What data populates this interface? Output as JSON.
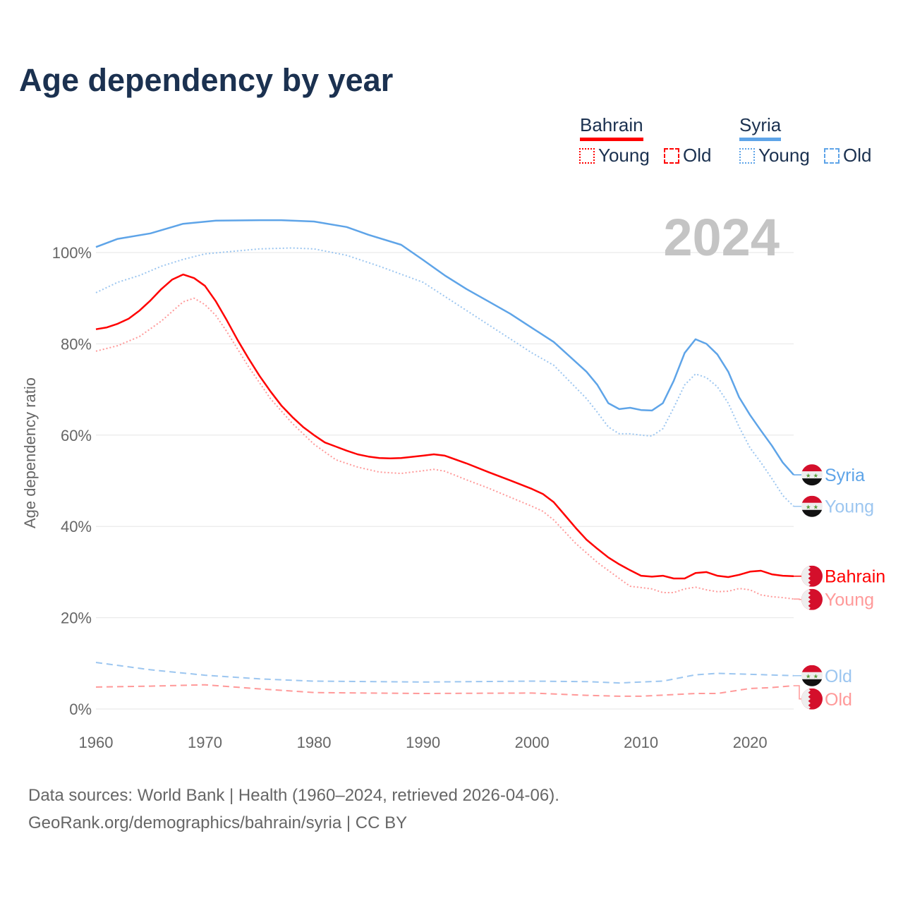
{
  "title": "Age dependency by year",
  "legend": {
    "countries": [
      {
        "name": "Bahrain",
        "color": "#ff0000",
        "young": "Young",
        "old": "Old"
      },
      {
        "name": "Syria",
        "color": "#5ea4e8",
        "young": "Young",
        "old": "Old"
      }
    ]
  },
  "footer": {
    "line1": "Data sources: World Bank | Health (1960–2024, retrieved 2026-04-06).",
    "line2": "GeoRank.org/demographics/bahrain/syria | CC BY"
  },
  "chart_data": {
    "type": "line",
    "title": "Age dependency by year",
    "year_label": "2024",
    "xlabel": "",
    "ylabel": "Age dependency ratio",
    "xlim": [
      1960,
      2024
    ],
    "ylim": [
      0,
      110
    ],
    "x_ticks": [
      "1960",
      "1970",
      "1980",
      "1990",
      "2000",
      "2010",
      "2020"
    ],
    "y_ticks": [
      "0%",
      "20%",
      "40%",
      "60%",
      "80%",
      "100%"
    ],
    "grid": true,
    "series": [
      {
        "name": "Syria",
        "label": "Syria",
        "country": "Syria",
        "style": "solid",
        "color": "#5ea4e8",
        "x": [
          1960,
          1962,
          1965,
          1968,
          1971,
          1975,
          1977,
          1980,
          1983,
          1985,
          1988,
          1990,
          1992,
          1994,
          1996,
          1998,
          2000,
          2002,
          2005,
          2006,
          2007,
          2008,
          2009,
          2010,
          2011,
          2012,
          2013,
          2014,
          2015,
          2016,
          2017,
          2018,
          2019,
          2020,
          2021,
          2022,
          2023,
          2024
        ],
        "y": [
          101.2,
          103,
          104.2,
          106.3,
          107,
          107.1,
          107.1,
          106.8,
          105.6,
          103.9,
          101.7,
          98.4,
          95,
          92,
          89.3,
          86.6,
          83.5,
          80.4,
          73.9,
          71,
          67,
          65.7,
          66,
          65.5,
          65.4,
          67,
          71.9,
          78,
          81,
          80,
          77.7,
          73.9,
          68.3,
          64.4,
          61,
          57.7,
          54,
          51.3
        ]
      },
      {
        "name": "Syria Young",
        "label": "Young",
        "country": "Syria",
        "style": "dotted",
        "color": "#9cc6f0",
        "x": [
          1960,
          1962,
          1964,
          1966,
          1968,
          1970,
          1975,
          1978,
          1980,
          1983,
          1986,
          1990,
          1994,
          1998,
          2000,
          2002,
          2005,
          2006,
          2007,
          2008,
          2009,
          2010,
          2011,
          2012,
          2013,
          2014,
          2015,
          2016,
          2017,
          2018,
          2019,
          2020,
          2021,
          2022,
          2023,
          2024
        ],
        "y": [
          91.2,
          93.5,
          95,
          97,
          98.5,
          99.7,
          100.8,
          101,
          100.8,
          99.4,
          97,
          93.5,
          87.3,
          81.1,
          78,
          75.3,
          68,
          65,
          61.8,
          60.3,
          60.3,
          60,
          59.8,
          61.4,
          66,
          71,
          73.4,
          72.6,
          70.6,
          67,
          61.8,
          57.2,
          54,
          50.5,
          46.8,
          44.4
        ]
      },
      {
        "name": "Syria Old",
        "label": "Old",
        "country": "Syria",
        "style": "dashed",
        "color": "#9cc6f0",
        "x": [
          1960,
          1965,
          1970,
          1975,
          1980,
          1990,
          2000,
          2005,
          2008,
          2012,
          2015,
          2017,
          2020,
          2024
        ],
        "y": [
          10.2,
          8.6,
          7.4,
          6.6,
          6.1,
          5.9,
          6.1,
          6.0,
          5.7,
          6.1,
          7.5,
          7.8,
          7.6,
          7.3
        ]
      },
      {
        "name": "Bahrain",
        "label": "Bahrain",
        "country": "Bahrain",
        "style": "solid",
        "color": "#ff0000",
        "x": [
          1960,
          1961,
          1962,
          1963,
          1964,
          1965,
          1966,
          1967,
          1968,
          1969,
          1970,
          1971,
          1972,
          1973,
          1974,
          1975,
          1976,
          1977,
          1978,
          1979,
          1980,
          1981,
          1982,
          1983,
          1984,
          1985,
          1986,
          1987,
          1988,
          1990,
          1991,
          1992,
          1994,
          1996,
          1998,
          2000,
          2001,
          2002,
          2003,
          2004,
          2005,
          2006,
          2007,
          2008,
          2009,
          2010,
          2011,
          2012,
          2013,
          2014,
          2015,
          2016,
          2017,
          2018,
          2019,
          2020,
          2021,
          2022,
          2023,
          2024
        ],
        "y": [
          83.2,
          83.6,
          84.4,
          85.5,
          87.3,
          89.5,
          92,
          94.1,
          95.2,
          94.4,
          92.7,
          89.3,
          85.2,
          80.8,
          76.8,
          73,
          69.6,
          66.5,
          64,
          61.8,
          60,
          58.4,
          57.5,
          56.6,
          55.8,
          55.3,
          55,
          54.9,
          55,
          55.5,
          55.8,
          55.5,
          53.8,
          51.9,
          50.1,
          48.2,
          47.1,
          45.3,
          42.5,
          39.7,
          37.1,
          35.1,
          33.2,
          31.7,
          30.4,
          29.2,
          29,
          29.2,
          28.6,
          28.6,
          29.8,
          30,
          29.2,
          28.9,
          29.4,
          30.1,
          30.3,
          29.5,
          29.2,
          29.1
        ]
      },
      {
        "name": "Bahrain Young",
        "label": "Young",
        "country": "Bahrain",
        "style": "dotted",
        "color": "#ff9999",
        "x": [
          1960,
          1962,
          1964,
          1966,
          1968,
          1969,
          1970,
          1971,
          1972,
          1974,
          1976,
          1978,
          1980,
          1982,
          1984,
          1986,
          1988,
          1990,
          1991,
          1992,
          1994,
          1996,
          1998,
          2000,
          2001,
          2002,
          2004,
          2006,
          2008,
          2009,
          2010,
          2011,
          2012,
          2013,
          2014,
          2015,
          2016,
          2017,
          2018,
          2019,
          2020,
          2021,
          2022,
          2023,
          2024
        ],
        "y": [
          78.4,
          79.6,
          81.6,
          85,
          89.2,
          90,
          88.6,
          86.2,
          82.7,
          75,
          68,
          62.6,
          58,
          54.6,
          53,
          51.9,
          51.6,
          52.2,
          52.5,
          52.1,
          50.2,
          48.4,
          46.4,
          44.4,
          43.3,
          41.4,
          36.3,
          32.1,
          28.6,
          26.9,
          26.6,
          26.3,
          25.5,
          25.5,
          26.3,
          26.7,
          26.1,
          25.7,
          25.8,
          26.4,
          26.1,
          25,
          24.6,
          24.4,
          24.1
        ]
      },
      {
        "name": "Bahrain Old",
        "label": "Old",
        "country": "Bahrain",
        "style": "dashed",
        "color": "#ff9999",
        "x": [
          1960,
          1965,
          1970,
          1975,
          1980,
          1990,
          2000,
          2005,
          2008,
          2010,
          2015,
          2017,
          2020,
          2022,
          2024
        ],
        "y": [
          4.8,
          5.0,
          5.3,
          4.4,
          3.6,
          3.4,
          3.5,
          3.0,
          2.8,
          2.8,
          3.4,
          3.4,
          4.5,
          4.7,
          5.1
        ]
      }
    ]
  }
}
